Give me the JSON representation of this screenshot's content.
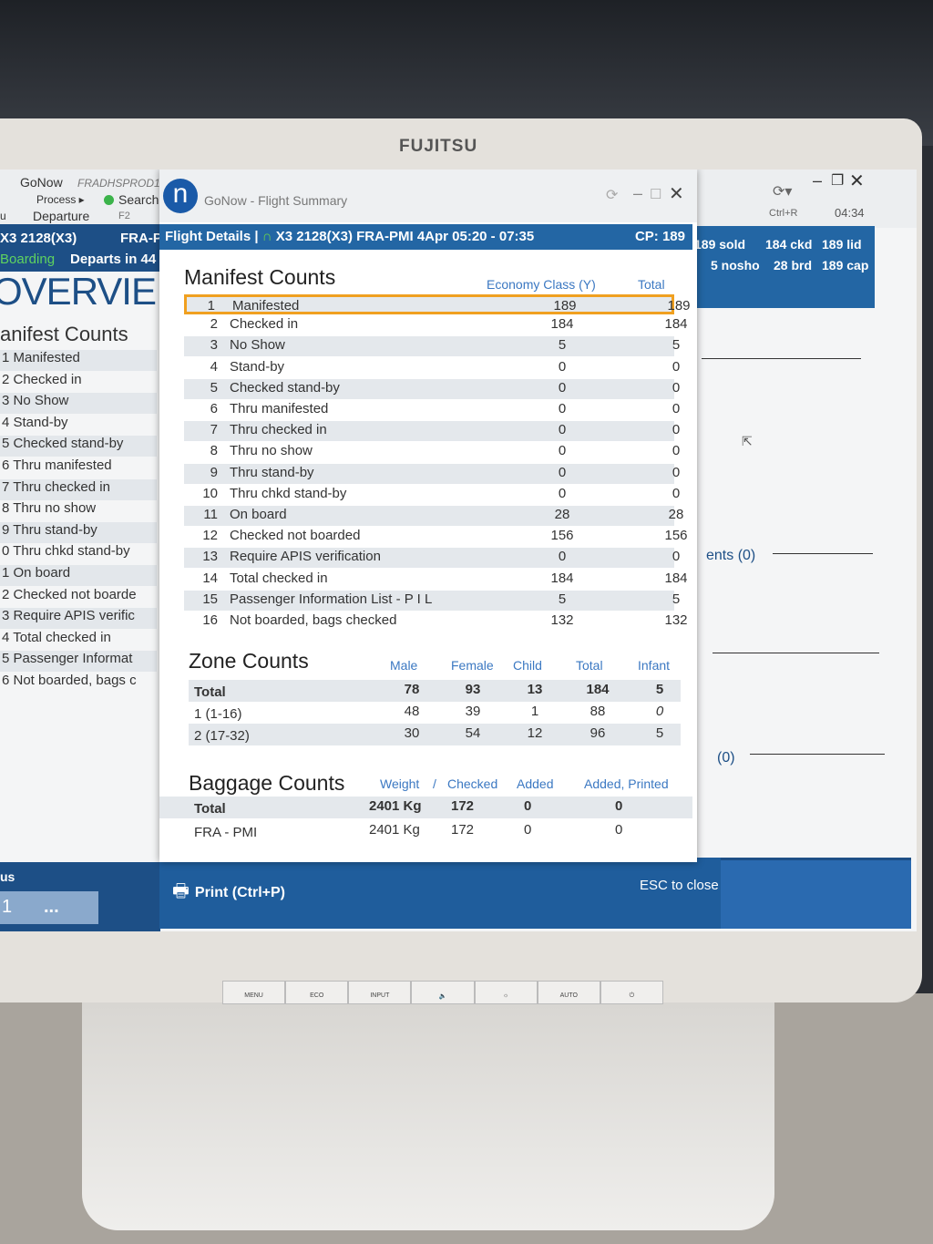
{
  "monitor": {
    "brand": "FUJITSU",
    "buttons": [
      "MENU",
      "ECO",
      "INPUT",
      "🔈",
      "☼",
      "AUTO",
      "⏻"
    ]
  },
  "left_window": {
    "app": "GoNow",
    "env": "FRADHSPROD1",
    "menu_process": "Process ▸",
    "search": "Search",
    "search_key": "F2",
    "menu_tail": "u",
    "departure": "Departure",
    "flight": "X3 2128(X3)",
    "route_partial": "FRA-P",
    "status": "Boarding",
    "departs": "Departs in 44",
    "overview": "OVERVIE",
    "section": "anifest Counts",
    "rows": [
      "1  Manifested",
      "2  Checked in",
      "3  No Show",
      "4  Stand-by",
      "5  Checked stand-by",
      "6  Thru manifested",
      "7  Thru checked in",
      "8  Thru no show",
      "9  Thru stand-by",
      "0  Thru chkd stand-by",
      "1  On board",
      "2  Checked not boarde",
      "3  Require APIS verific",
      "4  Total checked in",
      "5  Passenger Informat",
      "6  Not boarded, bags c"
    ],
    "bottom_label": "us",
    "bottom_value": "1",
    "more": "..."
  },
  "right_window": {
    "refresh_label": "Ctrl+R",
    "time": "04:34",
    "stats": [
      "189 sold",
      "184 ckd",
      "189 lid",
      "5 nosho",
      "28 brd",
      "189 cap"
    ],
    "frag1": "ents (0)",
    "frag2": "(0)"
  },
  "dialog": {
    "logo": "n",
    "title": "GoNow - Flight Summary",
    "bar": {
      "label": "Flight Details |",
      "flight": "X3 2128(X3)",
      "route": "FRA-PMI",
      "time": "4Apr 05:20 - 07:35",
      "cp": "CP: 189"
    },
    "manifest": {
      "title": "Manifest Counts",
      "col_economy": "Economy Class (Y)",
      "col_total": "Total",
      "rows": [
        {
          "n": "1",
          "label": "Manifested",
          "eco": "189",
          "total": "189"
        },
        {
          "n": "2",
          "label": "Checked in",
          "eco": "184",
          "total": "184"
        },
        {
          "n": "3",
          "label": "No Show",
          "eco": "5",
          "total": "5"
        },
        {
          "n": "4",
          "label": "Stand-by",
          "eco": "0",
          "total": "0"
        },
        {
          "n": "5",
          "label": "Checked stand-by",
          "eco": "0",
          "total": "0"
        },
        {
          "n": "6",
          "label": "Thru manifested",
          "eco": "0",
          "total": "0"
        },
        {
          "n": "7",
          "label": "Thru checked in",
          "eco": "0",
          "total": "0"
        },
        {
          "n": "8",
          "label": "Thru no show",
          "eco": "0",
          "total": "0"
        },
        {
          "n": "9",
          "label": "Thru stand-by",
          "eco": "0",
          "total": "0"
        },
        {
          "n": "10",
          "label": "Thru chkd stand-by",
          "eco": "0",
          "total": "0"
        },
        {
          "n": "11",
          "label": "On board",
          "eco": "28",
          "total": "28"
        },
        {
          "n": "12",
          "label": "Checked not boarded",
          "eco": "156",
          "total": "156"
        },
        {
          "n": "13",
          "label": "Require APIS verification",
          "eco": "0",
          "total": "0"
        },
        {
          "n": "14",
          "label": "Total checked in",
          "eco": "184",
          "total": "184"
        },
        {
          "n": "15",
          "label": "Passenger Information List - P I L",
          "eco": "5",
          "total": "5"
        },
        {
          "n": "16",
          "label": "Not boarded, bags checked",
          "eco": "132",
          "total": "132"
        }
      ]
    },
    "zone": {
      "title": "Zone Counts",
      "cols": [
        "Male",
        "Female",
        "Child",
        "Total",
        "Infant"
      ],
      "rows": [
        {
          "label": "Total",
          "v": [
            "78",
            "93",
            "13",
            "184",
            "5"
          ]
        },
        {
          "label": "1 (1-16)",
          "v": [
            "48",
            "39",
            "1",
            "88",
            "0"
          ]
        },
        {
          "label": "2 (17-32)",
          "v": [
            "30",
            "54",
            "12",
            "96",
            "5"
          ]
        }
      ]
    },
    "baggage": {
      "title": "Baggage Counts",
      "cols": [
        "Weight",
        "/",
        "Checked",
        "Added",
        "Added, Printed"
      ],
      "rows": [
        {
          "label": "Total",
          "v": [
            "2401 Kg",
            "172",
            "0",
            "0"
          ]
        },
        {
          "label": "FRA - PMI",
          "v": [
            "2401 Kg",
            "172",
            "0",
            "0"
          ]
        }
      ]
    },
    "print": "Print (Ctrl+P)",
    "esc": "ESC to close"
  }
}
